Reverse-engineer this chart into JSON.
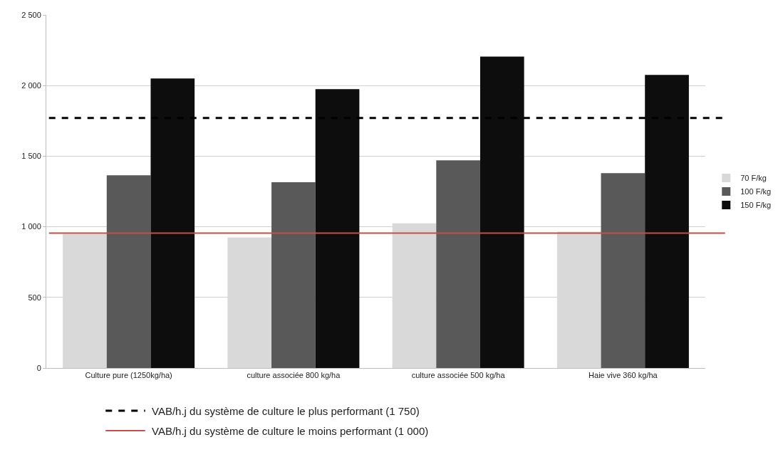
{
  "chart_data": {
    "type": "bar",
    "categories": [
      "Culture pure (1250kg/ha)",
      "culture associée 800 kg/ha",
      "culture associée 500 kg/ha",
      "Haie vive 360 kg/ha"
    ],
    "series": [
      {
        "name": "70 F/kg",
        "color": "#d9d9d9",
        "values": [
          950,
          925,
          1025,
          965
        ]
      },
      {
        "name": "100 F/kg",
        "color": "#595959",
        "values": [
          1365,
          1315,
          1470,
          1380
        ]
      },
      {
        "name": "150 F/kg",
        "color": "#0d0d0d",
        "values": [
          2050,
          1975,
          2205,
          2075
        ]
      }
    ],
    "ylim": [
      0,
      2500
    ],
    "yticks": [
      {
        "value": 0,
        "label": "0"
      },
      {
        "value": 500,
        "label": "500"
      },
      {
        "value": 1000,
        "label": "1 000"
      },
      {
        "value": 1500,
        "label": "1 500"
      },
      {
        "value": 2000,
        "label": "2 000"
      },
      {
        "value": 2500,
        "label": "2 500"
      }
    ],
    "grid": "y",
    "legend": "right",
    "ref_lines": [
      {
        "axis": "y",
        "value": 1770,
        "label": "VAB/h.j du système de culture le plus performant (1 750)",
        "color": "#000000",
        "line_style": "dashed"
      },
      {
        "axis": "y",
        "value": 955,
        "label": "VAB/h.j du système de culture le moins performant (1 000)",
        "color": "#c0504d",
        "line_style": "solid"
      }
    ]
  }
}
